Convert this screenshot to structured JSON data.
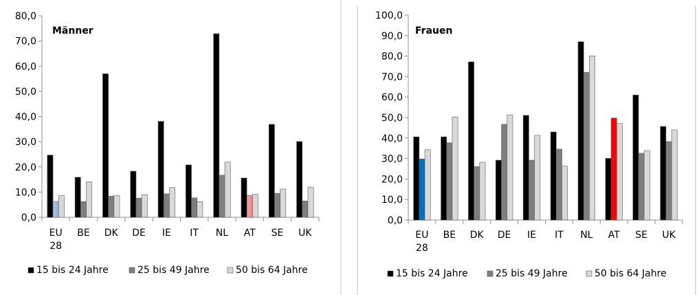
{
  "colors": {
    "s1": "#000000",
    "s2": "#7f7f7f",
    "s3": "#d9d9d9",
    "eu_s1": "#000000",
    "eu_s2_left": "#b4c7e7",
    "eu_s2_right": "#0070c0",
    "eu_s3": "#d9d9d9",
    "at_s2_left": "#f4a6a6",
    "at_s2_right": "#ff0000",
    "divider": "#bfbfbf"
  },
  "chart_data": [
    {
      "type": "bar",
      "title": "Männer",
      "categories": [
        "EU 28",
        "BE",
        "DK",
        "DE",
        "IE",
        "IT",
        "NL",
        "AT",
        "SE",
        "UK"
      ],
      "ylim": [
        0,
        80
      ],
      "yticks": [
        "0,0",
        "10,0",
        "20,0",
        "30,0",
        "40,0",
        "50,0",
        "60,0",
        "70,0",
        "80,0"
      ],
      "grid": false,
      "legend_position": "bottom",
      "series": [
        {
          "name": "15 bis 24 Jahre",
          "values": [
            24.7,
            15.9,
            57.0,
            18.3,
            38.1,
            20.8,
            72.9,
            15.6,
            36.9,
            30.1
          ]
        },
        {
          "name": "25 bis 49 Jahre",
          "values": [
            6.3,
            6.2,
            8.4,
            7.6,
            9.3,
            7.7,
            16.7,
            8.7,
            9.5,
            6.5
          ]
        },
        {
          "name": "50 bis 64 Jahre",
          "values": [
            8.7,
            14.1,
            8.7,
            9.0,
            11.8,
            6.2,
            21.9,
            9.1,
            11.2,
            12.0
          ]
        }
      ]
    },
    {
      "type": "bar",
      "title": "Frauen",
      "categories": [
        "EU 28",
        "BE",
        "DK",
        "DE",
        "IE",
        "IT",
        "NL",
        "AT",
        "SE",
        "UK"
      ],
      "ylim": [
        0,
        100
      ],
      "yticks": [
        "0,0",
        "10,0",
        "20,0",
        "30,0",
        "40,0",
        "50,0",
        "60,0",
        "70,0",
        "80,0",
        "90,0",
        "100,0"
      ],
      "grid": false,
      "legend_position": "bottom",
      "series": [
        {
          "name": "15 bis 24 Jahre",
          "values": [
            40.6,
            40.6,
            77.2,
            29.2,
            51.1,
            43.0,
            87.0,
            30.1,
            61.0,
            45.7
          ]
        },
        {
          "name": "25 bis 49 Jahre",
          "values": [
            29.8,
            37.7,
            26.1,
            46.7,
            29.2,
            34.6,
            72.1,
            49.8,
            32.6,
            38.3
          ]
        },
        {
          "name": "50 bis 64 Jahre",
          "values": [
            34.3,
            50.3,
            28.2,
            51.3,
            41.3,
            26.3,
            80.1,
            47.1,
            33.9,
            44.0
          ]
        }
      ]
    }
  ]
}
